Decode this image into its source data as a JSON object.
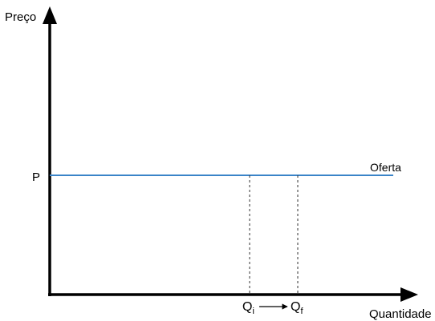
{
  "axes": {
    "y_label": "Preço",
    "x_label": "Quantidade"
  },
  "price_level": {
    "label": "P"
  },
  "supply_curve": {
    "label": "Oferta",
    "color": "#3a84c8"
  },
  "quantities": {
    "initial": {
      "base": "Q",
      "subscript": "i"
    },
    "final": {
      "base": "Q",
      "subscript": "f"
    }
  },
  "colors": {
    "axes": "#000000",
    "guides": "#333333"
  }
}
